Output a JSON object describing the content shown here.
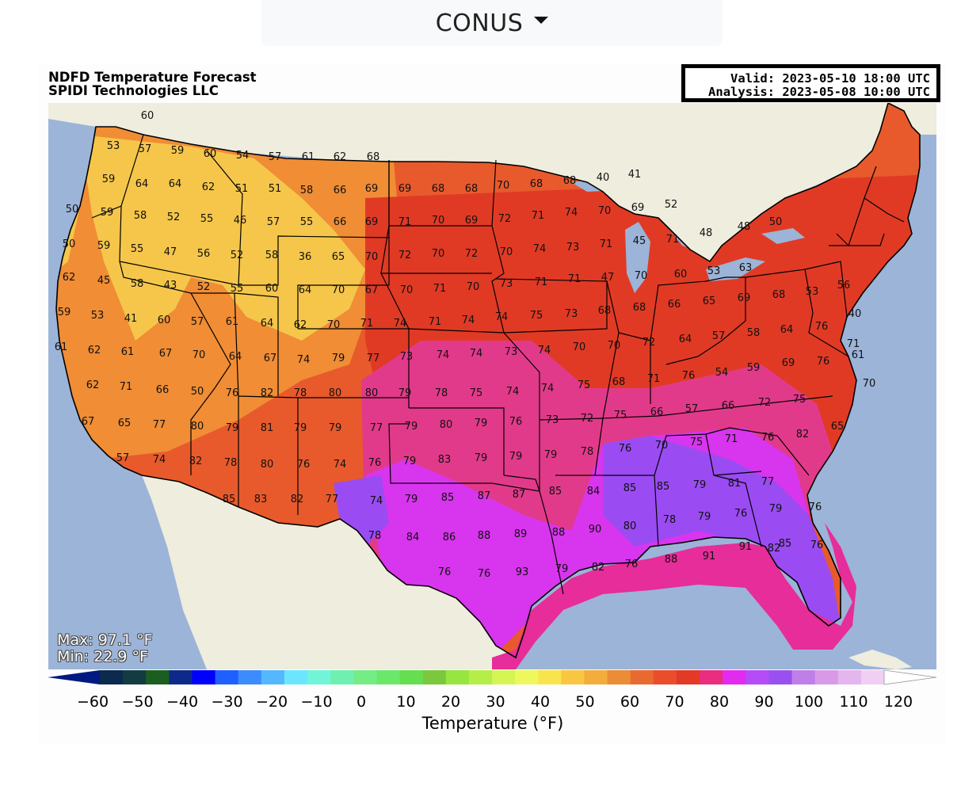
{
  "region_selector": {
    "label": "CONUS",
    "icon": "caret-down-icon"
  },
  "header": {
    "title_line1": "NDFD Temperature Forecast",
    "title_line2": "SPIDI Technologies LLC",
    "valid": "Valid: 2023-05-10 18:00 UTC",
    "analysis": "Analysis: 2023-05-08 10:00 UTC"
  },
  "stats": {
    "max": "Max: 97.1 °F",
    "min": "Min: 22.9 °F"
  },
  "colorbar": {
    "label": "Temperature (°F)",
    "min": -65,
    "max": 125,
    "ticks": [
      "−60",
      "−50",
      "−40",
      "−30",
      "−20",
      "−10",
      "0",
      "10",
      "20",
      "30",
      "40",
      "50",
      "60",
      "70",
      "80",
      "90",
      "100",
      "110",
      "120"
    ],
    "tick_values": [
      -60,
      -50,
      -40,
      -30,
      -20,
      -10,
      0,
      10,
      20,
      30,
      40,
      50,
      60,
      70,
      80,
      90,
      100,
      110,
      120
    ],
    "colors": [
      "#001a80",
      "#0c2a4e",
      "#123c42",
      "#1b5e20",
      "#0d2a8a",
      "#0000ff",
      "#2060ff",
      "#3d8cff",
      "#55b8ff",
      "#6ce6ff",
      "#70f5d8",
      "#70f0b0",
      "#75ec85",
      "#6be86a",
      "#65df50",
      "#7bc83e",
      "#97e540",
      "#b5ee48",
      "#d4f553",
      "#eef85e",
      "#f8e54d",
      "#f8c640",
      "#f2ad3c",
      "#ec8c35",
      "#e96a2e",
      "#e94d2b",
      "#e23a26",
      "#ea2d7e",
      "#e22af0",
      "#b44cf8",
      "#9a50f0",
      "#c07ee8",
      "#d89ae6",
      "#e3b6ee",
      "#efd0f3",
      "#ffffff"
    ]
  },
  "map_colors": {
    "ocean": "#9cb4d8",
    "land_outside": "#eeedde",
    "lake": "#9cb4d8",
    "cool": "#f5c64a",
    "mild": "#f08d35",
    "warm": "#e85a2c",
    "hot": "#e03a25",
    "vhot": "#e23a8a",
    "xhot": "#d835ee",
    "purple": "#9a4cf2",
    "gulf_warm": "#e62d9a"
  },
  "station_values": [
    "60",
    "53",
    "57",
    "59",
    "60",
    "54",
    "57",
    "61",
    "62",
    "68",
    "59",
    "64",
    "64",
    "62",
    "51",
    "51",
    "58",
    "66",
    "69",
    "69",
    "68",
    "68",
    "70",
    "68",
    "68",
    "40",
    "41",
    "50",
    "59",
    "58",
    "52",
    "55",
    "46",
    "57",
    "55",
    "66",
    "69",
    "71",
    "70",
    "69",
    "72",
    "71",
    "74",
    "70",
    "69",
    "52",
    "48",
    "50",
    "59",
    "55",
    "47",
    "56",
    "52",
    "58",
    "36",
    "65",
    "70",
    "72",
    "70",
    "72",
    "70",
    "74",
    "73",
    "71",
    "45",
    "71",
    "48",
    "50",
    "62",
    "45",
    "58",
    "43",
    "52",
    "55",
    "60",
    "64",
    "70",
    "67",
    "70",
    "71",
    "70",
    "73",
    "71",
    "71",
    "47",
    "70",
    "60",
    "53",
    "63",
    "59",
    "53",
    "41",
    "60",
    "57",
    "61",
    "64",
    "62",
    "70",
    "71",
    "74",
    "71",
    "74",
    "74",
    "75",
    "73",
    "68",
    "68",
    "66",
    "65",
    "69",
    "68",
    "53",
    "56",
    "40",
    "61",
    "62",
    "61",
    "67",
    "70",
    "64",
    "67",
    "74",
    "79",
    "77",
    "73",
    "74",
    "74",
    "73",
    "74",
    "70",
    "70",
    "72",
    "64",
    "57",
    "58",
    "64",
    "76",
    "71",
    "62",
    "71",
    "66",
    "50",
    "76",
    "82",
    "78",
    "80",
    "80",
    "79",
    "78",
    "75",
    "74",
    "74",
    "75",
    "68",
    "71",
    "76",
    "54",
    "59",
    "69",
    "76",
    "61",
    "70",
    "67",
    "65",
    "77",
    "80",
    "79",
    "81",
    "79",
    "79",
    "77",
    "79",
    "80",
    "79",
    "76",
    "73",
    "72",
    "75",
    "66",
    "57",
    "66",
    "72",
    "75",
    "65",
    "57",
    "74",
    "82",
    "78",
    "80",
    "76",
    "74",
    "76",
    "79",
    "83",
    "79",
    "79",
    "79",
    "78",
    "76",
    "70",
    "75",
    "71",
    "76",
    "82",
    "85",
    "83",
    "82",
    "77",
    "74",
    "79",
    "85",
    "87",
    "87",
    "85",
    "84",
    "85",
    "85",
    "79",
    "81",
    "77",
    "76",
    "78",
    "84",
    "86",
    "88",
    "89",
    "88",
    "90",
    "80",
    "78",
    "79",
    "76",
    "79",
    "85",
    "76",
    "76",
    "76",
    "93",
    "79",
    "82",
    "76",
    "88",
    "91",
    "91",
    "82"
  ],
  "cities_note": ""
}
